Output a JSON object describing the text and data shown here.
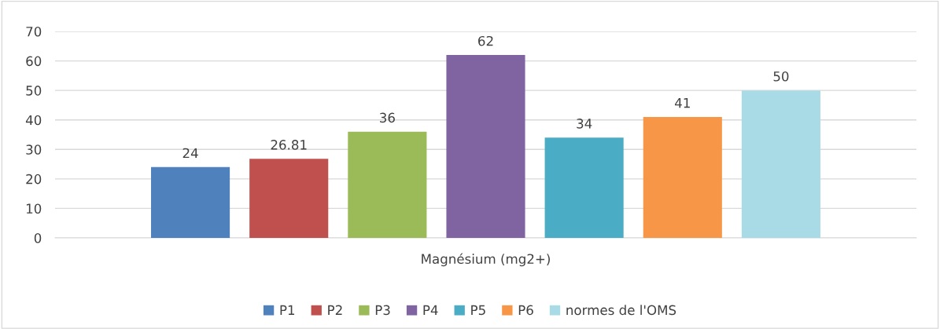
{
  "chart_data": {
    "type": "bar",
    "categories": [
      "Magnésium (mg2+)"
    ],
    "series": [
      {
        "name": "P1",
        "color": "#4f81bd",
        "values": [
          24
        ]
      },
      {
        "name": "P2",
        "color": "#c0504d",
        "values": [
          26.81
        ]
      },
      {
        "name": "P3",
        "color": "#9bbb59",
        "values": [
          36
        ]
      },
      {
        "name": "P4",
        "color": "#8064a2",
        "values": [
          62
        ]
      },
      {
        "name": "P5",
        "color": "#4bacc6",
        "values": [
          34
        ]
      },
      {
        "name": "P6",
        "color": "#f79646",
        "values": [
          41
        ]
      },
      {
        "name": "normes de l'OMS",
        "color": "#a9dbe6",
        "values": [
          50
        ]
      }
    ],
    "ylim": [
      0,
      70
    ],
    "yticks": [
      0,
      10,
      20,
      30,
      40,
      50,
      60,
      70
    ],
    "grid": "y",
    "legend": "bottom",
    "data_labels": true
  }
}
